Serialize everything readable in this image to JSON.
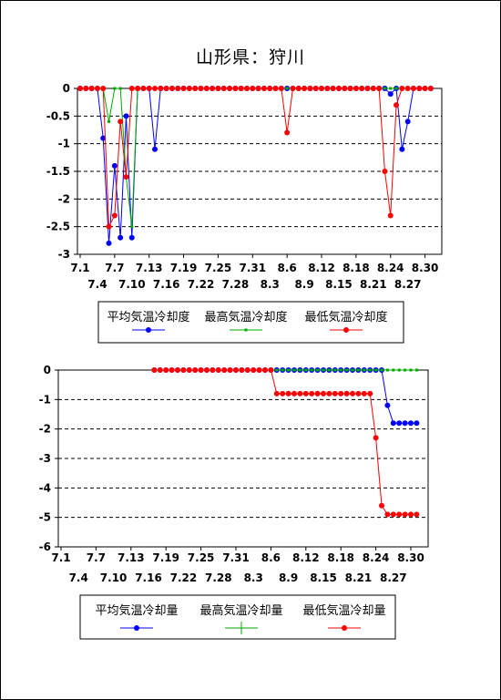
{
  "page": {
    "title": "山形県：狩川"
  },
  "chart_data": [
    {
      "type": "line",
      "ylim": [
        -3,
        0
      ],
      "yticks": [
        0,
        -0.5,
        -1,
        -1.5,
        -2,
        -2.5,
        -3
      ],
      "ytick_labels": [
        "0",
        "-0.5",
        "-1",
        "-1.5",
        "-2",
        "-2.5",
        "-3"
      ],
      "xtick_labels_row1": [
        "7.1",
        "7.7",
        "7.13",
        "7.19",
        "7.25",
        "7.31",
        "8.6",
        "8.12",
        "8.18",
        "8.24",
        "8.30"
      ],
      "xtick_labels_row2": [
        "7.4",
        "7.10",
        "7.16",
        "7.22",
        "7.28",
        "8.3",
        "8.9",
        "8.15",
        "8.21",
        "8.27"
      ],
      "grid": "horizontal-dashed",
      "legend_position": "bottom",
      "series": [
        {
          "name": "平均気温冷却度",
          "color": "#0000ff",
          "values": [
            0,
            0,
            0,
            0,
            -0.9,
            -2.8,
            -1.4,
            -2.7,
            -0.5,
            -2.7,
            0,
            0,
            0,
            -1.1,
            0,
            0,
            0,
            0,
            0,
            0,
            0,
            0,
            0,
            0,
            0,
            0,
            0,
            0,
            0,
            0,
            0,
            0,
            0,
            0,
            0,
            0,
            0,
            0,
            0,
            0,
            0,
            0,
            0,
            0,
            0,
            0,
            0,
            0,
            0,
            0,
            0,
            0,
            0,
            0,
            -0.1,
            0,
            -1.1,
            -0.6,
            0,
            0,
            0,
            0
          ]
        },
        {
          "name": "最高気温冷却度",
          "color": "#00aa00",
          "values": [
            0,
            0,
            0,
            0,
            0,
            -0.6,
            0,
            0,
            -1.6,
            -2.5,
            0,
            0,
            0,
            0,
            0,
            0,
            0,
            0,
            0,
            0,
            0,
            0,
            0,
            0,
            0,
            0,
            0,
            0,
            0,
            0,
            0,
            0,
            0,
            0,
            0,
            0,
            0,
            0,
            0,
            0,
            0,
            0,
            0,
            0,
            0,
            0,
            0,
            0,
            0,
            0,
            0,
            0,
            0,
            0,
            0,
            0,
            0,
            0,
            0,
            0,
            0,
            0
          ]
        },
        {
          "name": "最低気温冷却度",
          "color": "#ff0000",
          "values": [
            0,
            0,
            0,
            0,
            0,
            -2.5,
            -2.3,
            -0.6,
            -1.6,
            0,
            0,
            0,
            0,
            0,
            0,
            0,
            0,
            0,
            0,
            0,
            0,
            0,
            0,
            0,
            0,
            0,
            0,
            0,
            0,
            0,
            0,
            0,
            0,
            0,
            0,
            0,
            -0.8,
            0,
            0,
            0,
            0,
            0,
            0,
            0,
            0,
            0,
            0,
            0,
            0,
            0,
            0,
            0,
            0,
            -1.5,
            -2.3,
            -0.3,
            0,
            0,
            0,
            0,
            0,
            0
          ]
        }
      ]
    },
    {
      "type": "line",
      "ylim": [
        -6,
        0
      ],
      "yticks": [
        0,
        -1,
        -2,
        -3,
        -4,
        -5,
        -6
      ],
      "ytick_labels": [
        "0",
        "-1",
        "-2",
        "-3",
        "-4",
        "-5",
        "-6"
      ],
      "xtick_labels_row1": [
        "7.1",
        "7.7",
        "7.13",
        "7.19",
        "7.25",
        "7.31",
        "8.6",
        "8.12",
        "8.18",
        "8.24",
        "8.30"
      ],
      "xtick_labels_row2": [
        "7.4",
        "7.10",
        "7.16",
        "7.22",
        "7.28",
        "8.3",
        "8.9",
        "8.15",
        "8.21",
        "8.27"
      ],
      "grid": "horizontal-dashed",
      "legend_position": "bottom",
      "series": [
        {
          "name": "平均気温冷却量",
          "color": "#0000ff",
          "values": [
            null,
            null,
            null,
            null,
            null,
            null,
            null,
            null,
            null,
            null,
            null,
            null,
            null,
            null,
            null,
            null,
            0,
            0,
            0,
            0,
            0,
            0,
            0,
            0,
            0,
            0,
            0,
            0,
            0,
            0,
            0,
            0,
            0,
            0,
            0,
            0,
            0,
            0,
            0,
            0,
            0,
            0,
            0,
            0,
            0,
            0,
            0,
            0,
            0,
            0,
            0,
            0,
            0,
            0,
            0,
            0,
            -1.2,
            -1.8,
            -1.8,
            -1.8,
            -1.8,
            -1.8
          ]
        },
        {
          "name": "最高気温冷却量",
          "color": "#00aa00",
          "values": [
            null,
            null,
            null,
            null,
            null,
            null,
            null,
            null,
            null,
            null,
            null,
            null,
            null,
            null,
            null,
            null,
            0,
            0,
            0,
            0,
            0,
            0,
            0,
            0,
            0,
            0,
            0,
            0,
            0,
            0,
            0,
            0,
            0,
            0,
            0,
            0,
            0,
            0,
            0,
            0,
            0,
            0,
            0,
            0,
            0,
            0,
            0,
            0,
            0,
            0,
            0,
            0,
            0,
            0,
            0,
            0,
            0,
            0,
            0,
            0,
            0,
            0
          ]
        },
        {
          "name": "最低気温冷却量",
          "color": "#ff0000",
          "values": [
            null,
            null,
            null,
            null,
            null,
            null,
            null,
            null,
            null,
            null,
            null,
            null,
            null,
            null,
            null,
            null,
            0,
            0,
            0,
            0,
            0,
            0,
            0,
            0,
            0,
            0,
            0,
            0,
            0,
            0,
            0,
            0,
            0,
            0,
            0,
            0,
            0,
            -0.8,
            -0.8,
            -0.8,
            -0.8,
            -0.8,
            -0.8,
            -0.8,
            -0.8,
            -0.8,
            -0.8,
            -0.8,
            -0.8,
            -0.8,
            -0.8,
            -0.8,
            -0.8,
            -0.8,
            -2.3,
            -4.6,
            -4.9,
            -4.9,
            -4.9,
            -4.9,
            -4.9,
            -4.9
          ]
        }
      ]
    }
  ]
}
